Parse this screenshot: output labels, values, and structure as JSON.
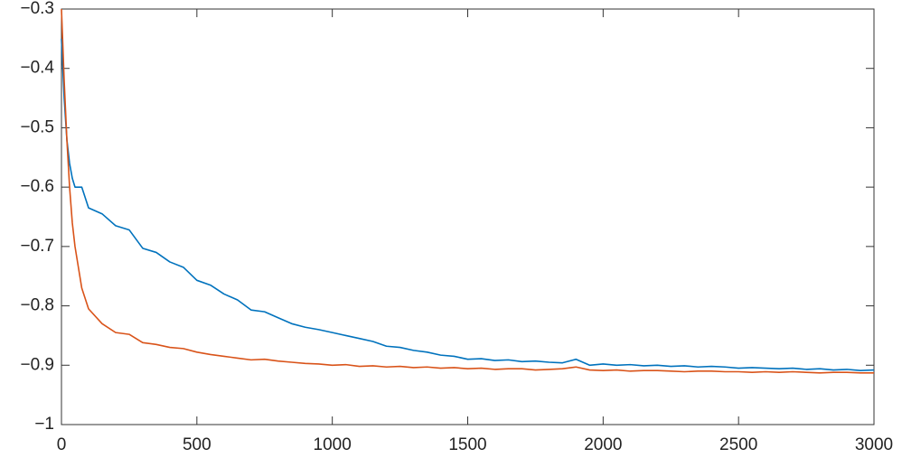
{
  "chart_data": {
    "type": "line",
    "x": [
      0,
      10,
      20,
      30,
      40,
      50,
      75,
      100,
      150,
      200,
      250,
      300,
      350,
      400,
      450,
      500,
      550,
      600,
      650,
      700,
      750,
      800,
      850,
      900,
      950,
      1000,
      1050,
      1100,
      1150,
      1200,
      1250,
      1300,
      1350,
      1400,
      1450,
      1500,
      1550,
      1600,
      1650,
      1700,
      1750,
      1800,
      1850,
      1900,
      1950,
      2000,
      2050,
      2100,
      2150,
      2200,
      2250,
      2300,
      2350,
      2400,
      2450,
      2500,
      2550,
      2600,
      2650,
      2700,
      2750,
      2800,
      2850,
      2900,
      2950,
      3000
    ],
    "series": [
      {
        "color": "#0072bd",
        "values": [
          -0.35,
          -0.45,
          -0.52,
          -0.56,
          -0.585,
          -0.6,
          -0.6,
          -0.635,
          -0.645,
          -0.665,
          -0.672,
          -0.703,
          -0.71,
          -0.726,
          -0.735,
          -0.757,
          -0.765,
          -0.78,
          -0.79,
          -0.807,
          -0.81,
          -0.82,
          -0.83,
          -0.836,
          -0.84,
          -0.845,
          -0.85,
          -0.855,
          -0.86,
          -0.868,
          -0.87,
          -0.875,
          -0.878,
          -0.883,
          -0.885,
          -0.89,
          -0.889,
          -0.892,
          -0.891,
          -0.894,
          -0.893,
          -0.895,
          -0.896,
          -0.89,
          -0.9,
          -0.898,
          -0.9,
          -0.899,
          -0.901,
          -0.9,
          -0.902,
          -0.901,
          -0.903,
          -0.902,
          -0.903,
          -0.905,
          -0.904,
          -0.905,
          -0.906,
          -0.905,
          -0.907,
          -0.906,
          -0.908,
          -0.907,
          -0.909,
          -0.908
        ]
      },
      {
        "color": "#d95319",
        "values": [
          -0.3,
          -0.42,
          -0.52,
          -0.6,
          -0.66,
          -0.7,
          -0.77,
          -0.805,
          -0.83,
          -0.845,
          -0.848,
          -0.862,
          -0.865,
          -0.87,
          -0.872,
          -0.878,
          -0.882,
          -0.885,
          -0.888,
          -0.891,
          -0.89,
          -0.893,
          -0.895,
          -0.897,
          -0.898,
          -0.9,
          -0.899,
          -0.902,
          -0.901,
          -0.903,
          -0.902,
          -0.904,
          -0.903,
          -0.905,
          -0.904,
          -0.906,
          -0.905,
          -0.907,
          -0.906,
          -0.906,
          -0.908,
          -0.907,
          -0.906,
          -0.903,
          -0.908,
          -0.909,
          -0.908,
          -0.91,
          -0.909,
          -0.909,
          -0.91,
          -0.911,
          -0.91,
          -0.91,
          -0.911,
          -0.911,
          -0.912,
          -0.911,
          -0.912,
          -0.911,
          -0.912,
          -0.913,
          -0.912,
          -0.912,
          -0.913,
          -0.913
        ]
      }
    ],
    "xlim": [
      0,
      3000
    ],
    "xticks": [
      0,
      500,
      1000,
      1500,
      2000,
      2500,
      3000
    ],
    "ylim": [
      -1,
      -0.3
    ],
    "yticks": [
      {
        "value": -1,
        "label": "−1"
      },
      {
        "value": -0.9,
        "label": "−0.9"
      },
      {
        "value": -0.8,
        "label": "−0.8"
      },
      {
        "value": -0.7,
        "label": "−0.7"
      },
      {
        "value": -0.6,
        "label": "−0.6"
      },
      {
        "value": -0.5,
        "label": "−0.5"
      },
      {
        "value": -0.4,
        "label": "−0.4"
      },
      {
        "value": -0.3,
        "label": "−0.3"
      }
    ]
  }
}
